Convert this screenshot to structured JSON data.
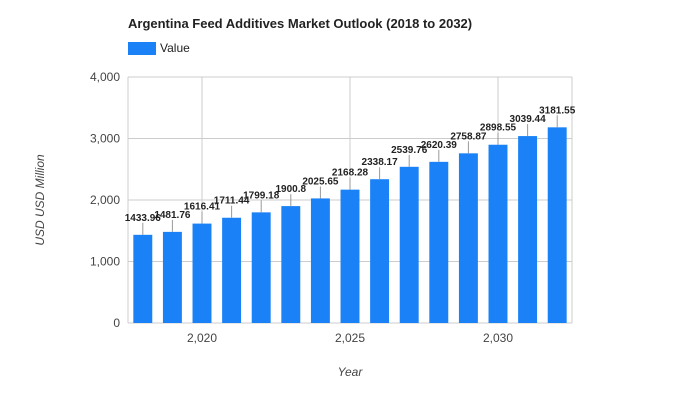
{
  "chart_data": {
    "type": "bar",
    "title": "Argentina Feed Additives Market Outlook (2018 to 2032)",
    "xlabel": "Year",
    "ylabel": "USD USD Million",
    "series": [
      {
        "name": "Value",
        "x": [
          2018,
          2019,
          2020,
          2021,
          2022,
          2023,
          2024,
          2025,
          2026,
          2027,
          2028,
          2029,
          2030,
          2031,
          2032
        ],
        "values": [
          1433.96,
          1481.76,
          1616.41,
          1711.44,
          1799.18,
          1900.8,
          2025.65,
          2168.28,
          2338.17,
          2539.76,
          2620.39,
          2758.87,
          2898.55,
          3039.44,
          3181.55
        ],
        "data_labels": [
          "1433.96",
          "1481.76",
          "1616.41",
          "1711.44",
          "1799.18",
          "1900.8",
          "2025.65",
          "2168.28",
          "2338.17",
          "2539.76",
          "2620.39",
          "2758.87",
          "2898.55",
          "3039.44",
          "3181.55"
        ]
      }
    ],
    "xlim": [
      2017.5,
      2032.5
    ],
    "ylim": [
      0,
      4000
    ],
    "y_ticks": [
      0,
      1000,
      2000,
      3000,
      4000
    ],
    "y_tick_labels": [
      "0",
      "1,000",
      "2,000",
      "3,000",
      "4,000"
    ],
    "x_ticks": [
      2020,
      2025,
      2030
    ],
    "x_tick_labels": [
      "2,020",
      "2,025",
      "2,030"
    ],
    "grid": true,
    "legend_position": "top-left",
    "colors": {
      "bar": "#1a82f6",
      "grid": "#cccccc",
      "axis_text": "#444444",
      "label_text": "#222222"
    }
  }
}
